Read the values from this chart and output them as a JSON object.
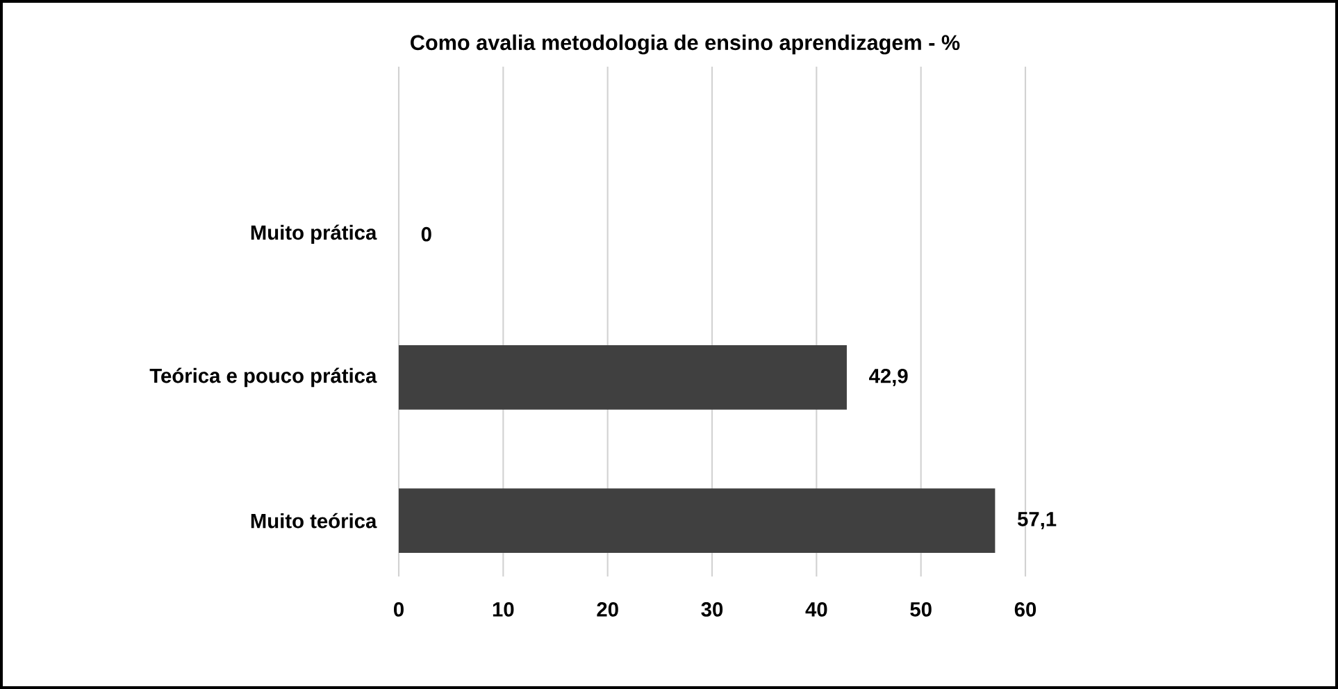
{
  "chart_data": {
    "type": "bar",
    "orientation": "horizontal",
    "title": "Como avalia metodologia de ensino aprendizagem - %",
    "categories": [
      "Muito prática",
      "Teórica e pouco prática",
      "Muito teórica"
    ],
    "values": [
      0,
      42.9,
      57.1
    ],
    "color": "#404040",
    "value_labels": [
      "0",
      "42,9",
      "57,1"
    ],
    "xlim": [
      0,
      60
    ],
    "xticks": [
      0,
      10,
      20,
      30,
      40,
      50,
      60
    ],
    "grid": "x"
  }
}
